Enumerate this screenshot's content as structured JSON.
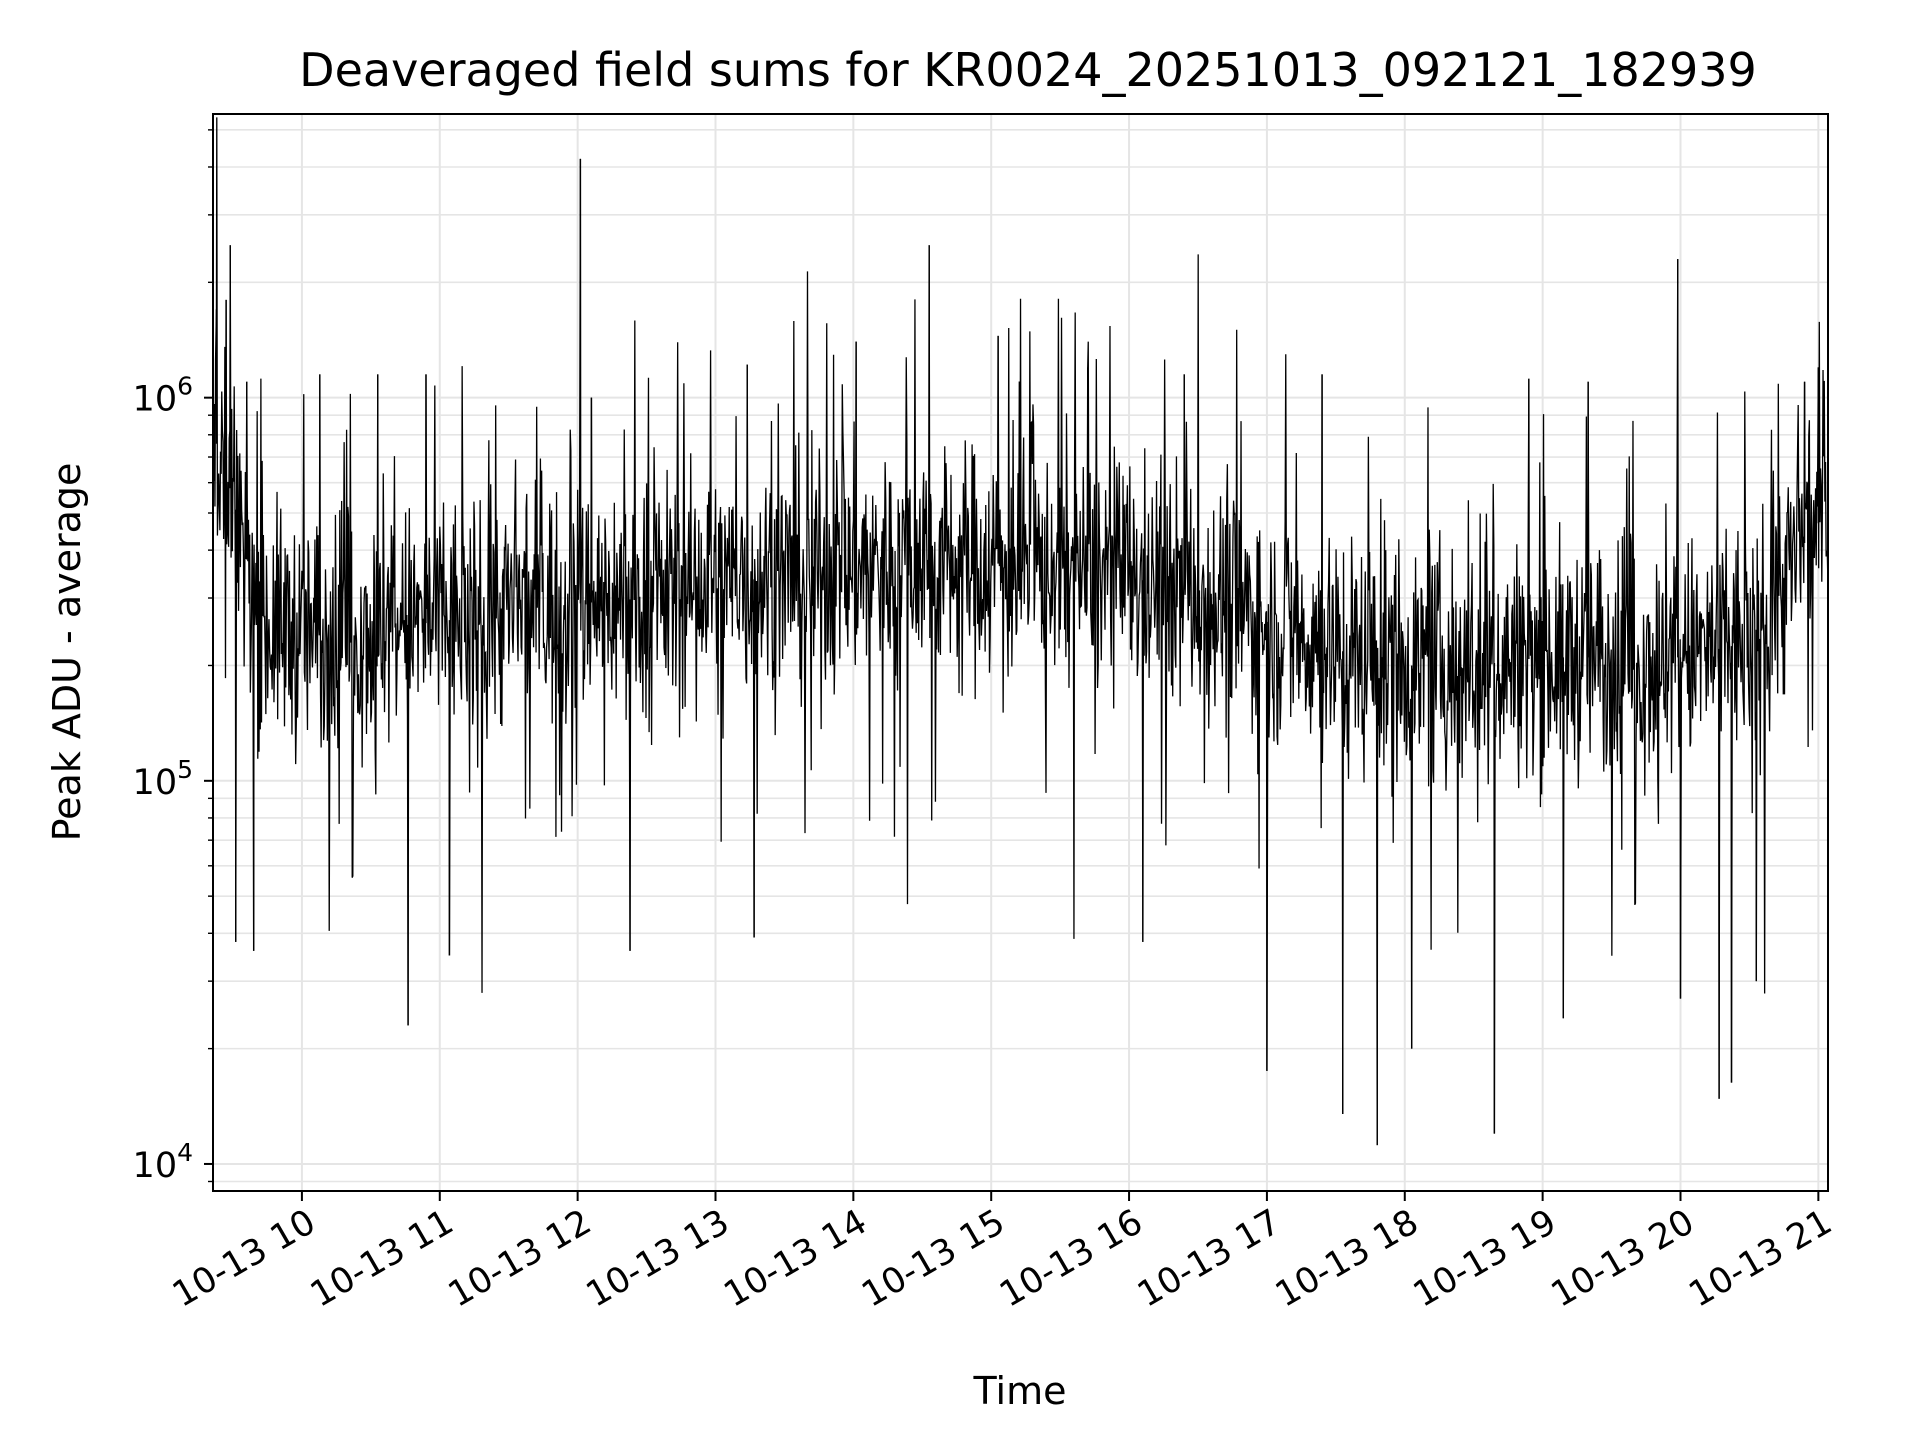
{
  "chart_data": {
    "type": "line",
    "title": "Deaveraged field sums for KR0024_20251013_092121_182939",
    "xlabel": "Time",
    "ylabel": "Peak ADU - average",
    "yscale": "log",
    "ylim": [
      8500,
      5500000
    ],
    "xlim_hours": [
      9.355,
      21.07
    ],
    "grid": true,
    "line_color": "#000000",
    "grid_color": "#e5e5e5",
    "x_ticks": [
      {
        "hour": 10,
        "label": "10-13 10"
      },
      {
        "hour": 11,
        "label": "10-13 11"
      },
      {
        "hour": 12,
        "label": "10-13 12"
      },
      {
        "hour": 13,
        "label": "10-13 13"
      },
      {
        "hour": 14,
        "label": "10-13 14"
      },
      {
        "hour": 15,
        "label": "10-13 15"
      },
      {
        "hour": 16,
        "label": "10-13 16"
      },
      {
        "hour": 17,
        "label": "10-13 17"
      },
      {
        "hour": 18,
        "label": "10-13 18"
      },
      {
        "hour": 19,
        "label": "10-13 19"
      },
      {
        "hour": 20,
        "label": "10-13 20"
      },
      {
        "hour": 21,
        "label": "10-13 21"
      }
    ],
    "y_ticks": [
      {
        "value": 10000,
        "base": "10",
        "exp": "4"
      },
      {
        "value": 100000,
        "base": "10",
        "exp": "5"
      },
      {
        "value": 1000000,
        "base": "10",
        "exp": "6"
      }
    ],
    "series": [
      {
        "name": "Deaveraged field sum",
        "baseline": {
          "hours": [
            9.36,
            9.5,
            9.7,
            10.0,
            10.5,
            11.0,
            11.5,
            12.0,
            12.5,
            13.0,
            13.5,
            14.0,
            14.5,
            15.0,
            15.5,
            16.0,
            16.5,
            17.0,
            17.5,
            18.0,
            18.5,
            19.0,
            19.5,
            20.0,
            20.5,
            20.95,
            21.07
          ],
          "values": [
            800000,
            550000,
            260000,
            240000,
            250000,
            260000,
            280000,
            290000,
            300000,
            330000,
            340000,
            360000,
            380000,
            370000,
            360000,
            340000,
            310000,
            260000,
            220000,
            200000,
            200000,
            210000,
            210000,
            210000,
            230000,
            450000,
            500000
          ]
        },
        "spikes": [
          {
            "hour": 9.38,
            "value": 1700000
          },
          {
            "hour": 9.45,
            "value": 1800000
          },
          {
            "hour": 9.48,
            "value": 2500000
          },
          {
            "hour": 9.6,
            "value": 1100000
          },
          {
            "hour": 10.13,
            "value": 1150000
          },
          {
            "hour": 10.55,
            "value": 1150000
          },
          {
            "hour": 10.9,
            "value": 1150000
          },
          {
            "hour": 12.02,
            "value": 4200000
          },
          {
            "hour": 12.1,
            "value": 1000000
          },
          {
            "hour": 13.23,
            "value": 1220000
          },
          {
            "hour": 14.02,
            "value": 1400000
          },
          {
            "hour": 14.55,
            "value": 2500000
          },
          {
            "hour": 15.05,
            "value": 1450000
          },
          {
            "hour": 15.7,
            "value": 1200000
          },
          {
            "hour": 16.4,
            "value": 1150000
          },
          {
            "hour": 17.4,
            "value": 1150000
          },
          {
            "hour": 18.9,
            "value": 1120000
          },
          {
            "hour": 19.33,
            "value": 1100000
          },
          {
            "hour": 19.98,
            "value": 2300000
          },
          {
            "hour": 20.9,
            "value": 1100000
          },
          {
            "hour": 21.0,
            "value": 1200000
          }
        ],
        "dips": [
          {
            "hour": 9.52,
            "value": 38000
          },
          {
            "hour": 9.65,
            "value": 36000
          },
          {
            "hour": 10.77,
            "value": 23000
          },
          {
            "hour": 11.07,
            "value": 35000
          },
          {
            "hour": 12.38,
            "value": 36000
          },
          {
            "hour": 13.28,
            "value": 39000
          },
          {
            "hour": 16.1,
            "value": 38000
          },
          {
            "hour": 17.0,
            "value": 17500
          },
          {
            "hour": 17.55,
            "value": 13500
          },
          {
            "hour": 17.8,
            "value": 11200
          },
          {
            "hour": 18.05,
            "value": 20000
          },
          {
            "hour": 18.65,
            "value": 12000
          },
          {
            "hour": 19.15,
            "value": 24000
          },
          {
            "hour": 20.0,
            "value": 27000
          },
          {
            "hour": 20.28,
            "value": 14800
          },
          {
            "hour": 20.37,
            "value": 16300
          },
          {
            "hour": 20.55,
            "value": 30000
          }
        ]
      }
    ]
  }
}
